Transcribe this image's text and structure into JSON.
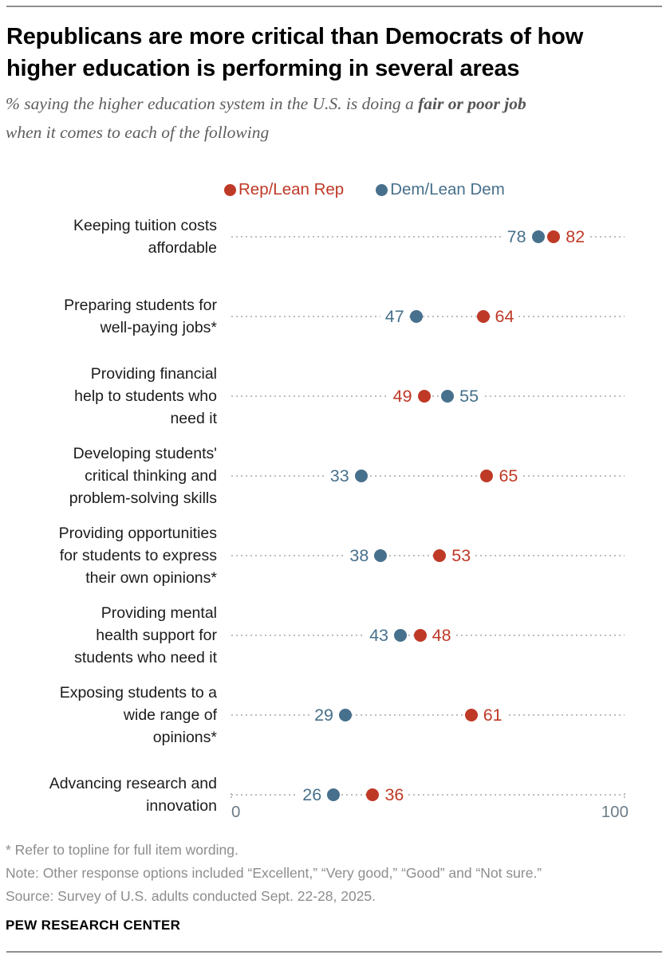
{
  "header": {
    "title": "Republicans are more critical than Democrats of how\nhigher education is performing in several areas",
    "subtitle_prefix": "% saying the higher education system in the U.S. is doing a ",
    "subtitle_bold": "fair or poor job",
    "subtitle_suffix": "when it comes to each of the following"
  },
  "legend": {
    "rep_label": "Rep/Lean Rep",
    "dem_label": "Dem/Lean Dem"
  },
  "chart_data": {
    "type": "scatter",
    "subtype": "dot-plot",
    "xlim": [
      0,
      100
    ],
    "grid": "dotted-leader-per-row",
    "legend_position": "top",
    "series": [
      {
        "name": "Rep/Lean Rep",
        "color": "#bf3927"
      },
      {
        "name": "Dem/Lean Dem",
        "color": "#47708c"
      }
    ],
    "rows": [
      {
        "label": "Keeping tuition costs\naffordable",
        "dem": 78,
        "rep": 82
      },
      {
        "label": "Preparing students for\nwell-paying jobs*",
        "dem": 47,
        "rep": 64
      },
      {
        "label": "Providing financial\nhelp to students who\nneed it",
        "dem": 55,
        "rep": 49
      },
      {
        "label": "Developing students'\ncritical thinking and\nproblem-solving skills",
        "dem": 33,
        "rep": 65
      },
      {
        "label": "Providing opportunities\nfor students to express\ntheir own opinions*",
        "dem": 38,
        "rep": 53
      },
      {
        "label": "Providing mental\nhealth support for\nstudents who need it",
        "dem": 43,
        "rep": 48
      },
      {
        "label": "Exposing students to a\nwide range of\nopinions*",
        "dem": 29,
        "rep": 61
      },
      {
        "label": "Advancing research and\ninnovation",
        "dem": 26,
        "rep": 36
      }
    ],
    "axis": {
      "min_label": "0",
      "max_label": "100"
    }
  },
  "footer": {
    "footnote": "* Refer to topline for full item wording.",
    "note": "Note: Other response options included “Excellent,” “Very good,” “Good” and “Not sure.”",
    "source": "Source: Survey of U.S. adults conducted Sept. 22-28, 2025.",
    "brand": "PEW RESEARCH CENTER"
  }
}
